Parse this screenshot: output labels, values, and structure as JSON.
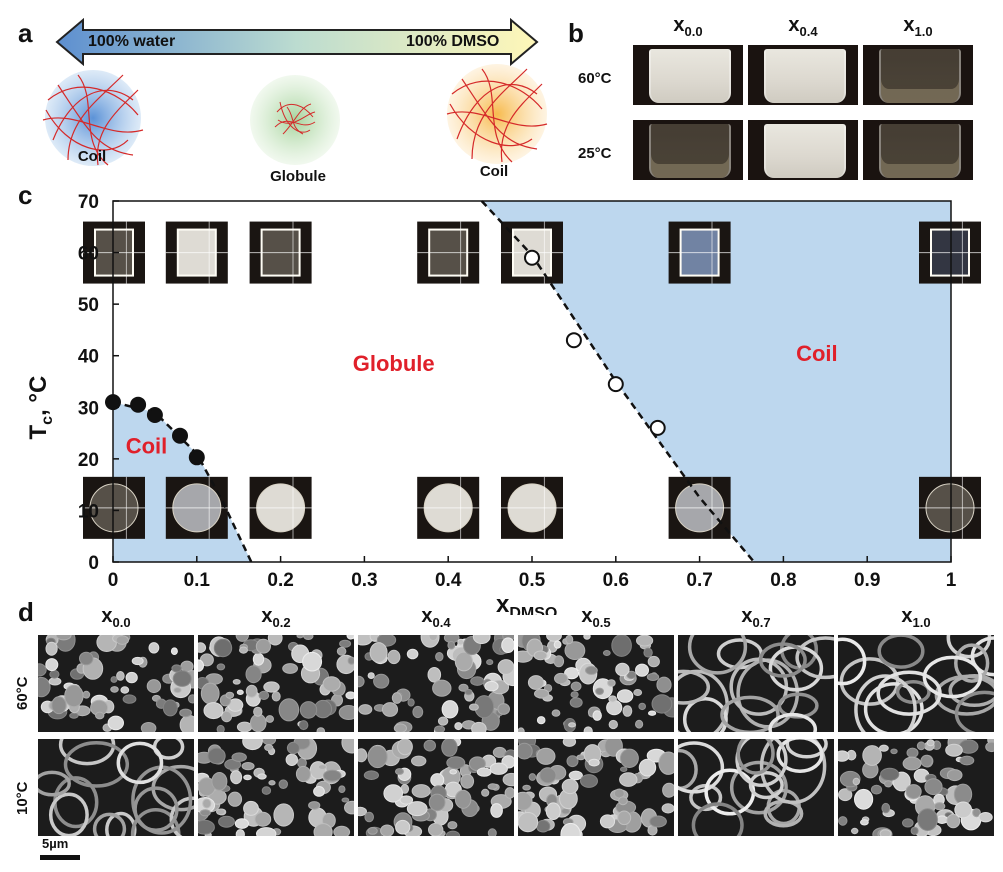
{
  "panel_a": {
    "letter": "a",
    "arrow_left_label": "100% water",
    "arrow_right_label": "100% DMSO",
    "blobs": [
      {
        "label": "Coil",
        "color": "#6fa3d8"
      },
      {
        "label": "Globule",
        "color": "#a8d5a0"
      },
      {
        "label": "Coil",
        "color": "#f6c35a"
      }
    ]
  },
  "panel_b": {
    "letter": "b",
    "columns": [
      {
        "base": "x",
        "sub": "0.0"
      },
      {
        "base": "x",
        "sub": "0.4"
      },
      {
        "base": "x",
        "sub": "1.0"
      }
    ],
    "rows": [
      "60°C",
      "25°C"
    ],
    "appearance": [
      [
        "cloudy",
        "cloudy",
        "clear"
      ],
      [
        "clear",
        "cloudy",
        "clear"
      ]
    ]
  },
  "panel_c": {
    "letter": "c"
  },
  "panel_d": {
    "letter": "d",
    "columns": [
      {
        "base": "x",
        "sub": "0.0"
      },
      {
        "base": "x",
        "sub": "0.2"
      },
      {
        "base": "x",
        "sub": "0.4"
      },
      {
        "base": "x",
        "sub": "0.5"
      },
      {
        "base": "x",
        "sub": "0.7"
      },
      {
        "base": "x",
        "sub": "1.0"
      }
    ],
    "rows": [
      "60°C",
      "10°C"
    ],
    "scale_bar": "5µm"
  },
  "chart_data": {
    "type": "scatter",
    "title": "",
    "xlabel": "x",
    "xlabel_sub": "DMSO",
    "ylabel": "T",
    "ylabel_sub": "c",
    "ylabel_unit": ", °C",
    "xlim": [
      0,
      1
    ],
    "ylim": [
      0,
      70
    ],
    "xticks": [
      "0",
      "0.1",
      "0.2",
      "0.3",
      "0.4",
      "0.5",
      "0.6",
      "0.7",
      "0.8",
      "0.9",
      "1"
    ],
    "yticks": [
      "0",
      "10",
      "20",
      "30",
      "40",
      "50",
      "60",
      "70"
    ],
    "series": [
      {
        "marker": "filled",
        "x": [
          0.0,
          0.03,
          0.05,
          0.08,
          0.1
        ],
        "y": [
          31,
          30.5,
          28.5,
          24.5,
          20.3
        ]
      },
      {
        "marker": "open",
        "x": [
          0.5,
          0.55,
          0.6,
          0.65
        ],
        "y": [
          59,
          43,
          34.5,
          26
        ]
      }
    ],
    "boundary_left": [
      [
        0,
        31
      ],
      [
        0.05,
        29
      ],
      [
        0.1,
        21
      ],
      [
        0.13,
        12
      ],
      [
        0.165,
        0
      ]
    ],
    "boundary_right": [
      [
        0.44,
        70
      ],
      [
        0.5,
        59.5
      ],
      [
        0.6,
        35
      ],
      [
        0.7,
        12.5
      ],
      [
        0.765,
        0
      ]
    ],
    "regions": [
      {
        "label": "Coil",
        "x": 0.04,
        "y": 21
      },
      {
        "label": "Globule",
        "x": 0.335,
        "y": 37
      },
      {
        "label": "Coil",
        "x": 0.84,
        "y": 39
      }
    ],
    "region_color": "#bdd7ee",
    "label_color": "#e0202a",
    "insets_top": [
      0.0,
      0.1,
      0.2,
      0.4,
      0.5,
      0.7,
      1.0
    ],
    "insets_top_state": [
      "clear",
      "white",
      "clear",
      "clear",
      "white",
      "blue",
      "dark"
    ],
    "insets_bottom": [
      0.0,
      0.1,
      0.2,
      0.4,
      0.5,
      0.7,
      1.0
    ],
    "insets_bottom_state": [
      "clear",
      "translucent",
      "white",
      "white",
      "white",
      "translucent",
      "clear"
    ]
  }
}
